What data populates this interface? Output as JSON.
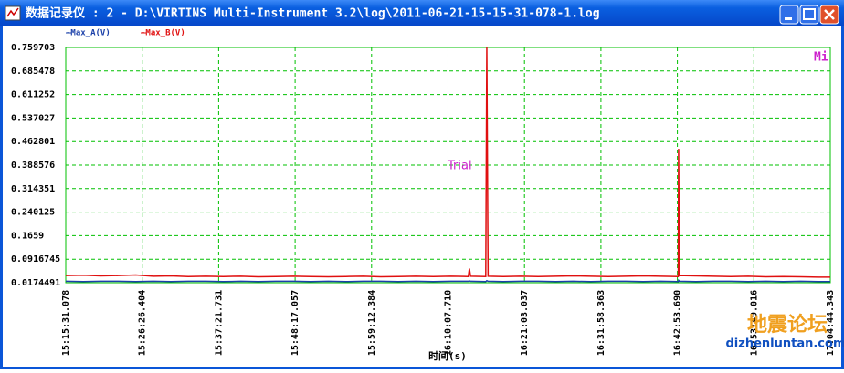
{
  "window": {
    "title": "数据记录仪 : 2 - D:\\VIRTINS Multi-Instrument 3.2\\log\\2011-06-21-15-15-31-078-1.log"
  },
  "watermark": {
    "line1": "地震论坛",
    "line2": "dizhenluntan.com"
  },
  "chart_data": {
    "type": "line",
    "xlabel": "时间(s)",
    "annotations": [
      "Trial",
      "Mi"
    ],
    "grid": true,
    "xlim": [
      0,
      6553.265
    ],
    "xticks": [
      {
        "value": 0,
        "label": "15:15:31.078"
      },
      {
        "value": 655.326,
        "label": "15:26:26.404"
      },
      {
        "value": 1310.653,
        "label": "15:37:21.731"
      },
      {
        "value": 1965.979,
        "label": "15:48:17.057"
      },
      {
        "value": 2621.306,
        "label": "15:59:12.384"
      },
      {
        "value": 3276.632,
        "label": "16:10:07.710"
      },
      {
        "value": 3931.959,
        "label": "16:21:03.037"
      },
      {
        "value": 4587.285,
        "label": "16:31:58.363"
      },
      {
        "value": 5242.612,
        "label": "16:42:53.690"
      },
      {
        "value": 5897.938,
        "label": "16:53:49.016"
      },
      {
        "value": 6553.265,
        "label": "17:04:44.343"
      }
    ],
    "ylim": [
      0.0174491,
      0.759703
    ],
    "yticks": [
      0.759703,
      0.685478,
      0.611252,
      0.537027,
      0.462801,
      0.388576,
      0.314351,
      0.240125,
      0.1659,
      0.0916745,
      0.0174491
    ],
    "x": [
      0,
      150,
      300,
      450,
      600,
      750,
      900,
      1050,
      1200,
      1350,
      1500,
      1650,
      1800,
      1950,
      2100,
      2250,
      2400,
      2550,
      2700,
      2850,
      3000,
      3150,
      3300,
      3450,
      3460,
      3470,
      3600,
      3609,
      3620,
      3750,
      3900,
      4050,
      4200,
      4350,
      4500,
      4650,
      4800,
      4950,
      5100,
      5250,
      5253,
      5260,
      5400,
      5550,
      5700,
      5850,
      6000,
      6150,
      6300,
      6450,
      6553
    ],
    "series": [
      {
        "name": "-Max_A(V)",
        "color": "#1a3fa8",
        "values": [
          0.022,
          0.021,
          0.022,
          0.022,
          0.021,
          0.022,
          0.021,
          0.022,
          0.022,
          0.021,
          0.022,
          0.021,
          0.022,
          0.022,
          0.021,
          0.022,
          0.021,
          0.022,
          0.022,
          0.021,
          0.022,
          0.021,
          0.022,
          0.022,
          0.023,
          0.022,
          0.021,
          0.024,
          0.022,
          0.021,
          0.022,
          0.022,
          0.021,
          0.022,
          0.021,
          0.022,
          0.022,
          0.021,
          0.022,
          0.021,
          0.025,
          0.022,
          0.021,
          0.022,
          0.022,
          0.021,
          0.022,
          0.021,
          0.022,
          0.021,
          0.021
        ]
      },
      {
        "name": "-Max_B(V)",
        "color": "#e01010",
        "values": [
          0.04,
          0.041,
          0.039,
          0.04,
          0.042,
          0.038,
          0.039,
          0.037,
          0.038,
          0.037,
          0.038,
          0.036,
          0.037,
          0.038,
          0.037,
          0.036,
          0.037,
          0.038,
          0.036,
          0.037,
          0.038,
          0.037,
          0.038,
          0.037,
          0.062,
          0.038,
          0.037,
          0.7597,
          0.038,
          0.037,
          0.038,
          0.037,
          0.038,
          0.039,
          0.038,
          0.037,
          0.038,
          0.039,
          0.038,
          0.037,
          0.44,
          0.04,
          0.039,
          0.038,
          0.037,
          0.038,
          0.036,
          0.037,
          0.036,
          0.035,
          0.035
        ]
      }
    ]
  }
}
